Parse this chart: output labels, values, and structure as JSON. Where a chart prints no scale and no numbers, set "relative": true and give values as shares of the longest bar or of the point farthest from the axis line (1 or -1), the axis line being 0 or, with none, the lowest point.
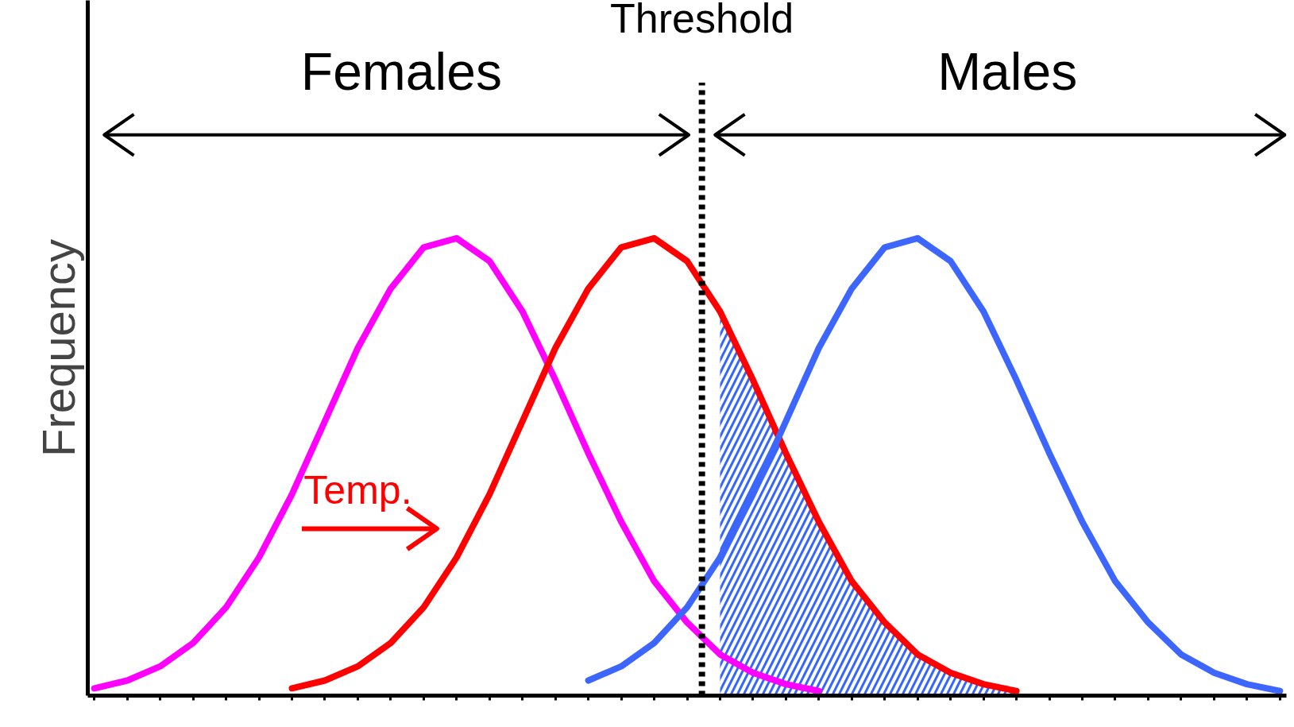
{
  "chart_data": {
    "type": "line",
    "relative": true,
    "ylabel": "Frequency",
    "categories": [
      null,
      null,
      null,
      null,
      null,
      null,
      null,
      null,
      null,
      null,
      null,
      null,
      null,
      null,
      null,
      null,
      null,
      null,
      null,
      null,
      null,
      null,
      null,
      null,
      null,
      null,
      null,
      null,
      null,
      null,
      null,
      null,
      null,
      null,
      null,
      null,
      null
    ],
    "series": [
      {
        "type": "area",
        "color": "#3366ff",
        "values": [
          null,
          null,
          null,
          null,
          null,
          null,
          null,
          null,
          null,
          null,
          null,
          null,
          null,
          null,
          null,
          null,
          null,
          null,
          null,
          0.84,
          0.69,
          0.53,
          0.38,
          0.25,
          0.16,
          0.09,
          0.05,
          0.025,
          0.01,
          null,
          null,
          null,
          null,
          null,
          null,
          null,
          null
        ]
      },
      {
        "color": "#ff00ff",
        "values": [
          0.016,
          0.033,
          0.064,
          0.115,
          0.193,
          0.302,
          0.44,
          0.6,
          0.76,
          0.89,
          0.98,
          1.0,
          0.95,
          0.84,
          0.69,
          0.53,
          0.38,
          0.25,
          0.16,
          0.09,
          0.05,
          0.025,
          0.01,
          null,
          null,
          null,
          null,
          null,
          null,
          null,
          null,
          null,
          null,
          null,
          null,
          null,
          null
        ]
      },
      {
        "color": "#ff0000",
        "values": [
          null,
          null,
          null,
          null,
          null,
          null,
          0.016,
          0.033,
          0.064,
          0.115,
          0.193,
          0.302,
          0.44,
          0.6,
          0.76,
          0.89,
          0.98,
          1.0,
          0.95,
          0.84,
          0.69,
          0.53,
          0.38,
          0.25,
          0.16,
          0.09,
          0.05,
          0.025,
          0.01,
          null,
          null,
          null,
          null,
          null,
          null,
          null,
          null
        ]
      },
      {
        "color": "#3d66ff",
        "values": [
          null,
          null,
          null,
          null,
          null,
          null,
          null,
          null,
          null,
          null,
          null,
          null,
          null,
          null,
          null,
          0.033,
          0.064,
          0.115,
          0.193,
          0.302,
          0.44,
          0.6,
          0.76,
          0.89,
          0.98,
          1.0,
          0.95,
          0.84,
          0.69,
          0.53,
          0.38,
          0.25,
          0.16,
          0.09,
          0.05,
          0.025,
          0.01
        ]
      }
    ],
    "annotations": [
      "Females",
      "Males",
      "Temp.",
      "Threshold"
    ],
    "grid": false,
    "legend": false
  }
}
